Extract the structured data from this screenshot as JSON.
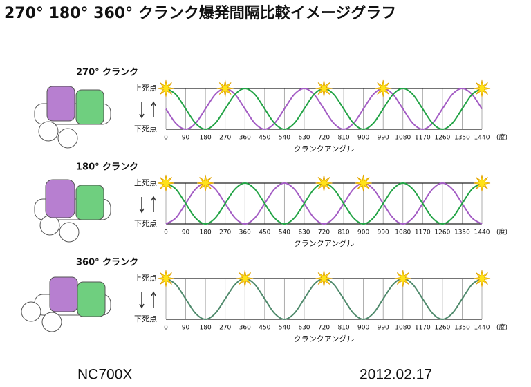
{
  "title": "270° 180° 360° クランク爆発間隔比較イメージグラフ",
  "footer_left": "NC700X",
  "footer_right": "2012.02.17",
  "chart_data": [
    {
      "type": "line",
      "title": "270° クランク",
      "x_label": "クランクアングル",
      "x_unit": "(度)",
      "xlim": [
        0,
        1440
      ],
      "xticks": [
        0,
        90,
        180,
        270,
        360,
        450,
        540,
        630,
        720,
        810,
        900,
        990,
        1080,
        1170,
        1260,
        1350,
        1440
      ],
      "ylim": [
        -1,
        1
      ],
      "yticks": [
        {
          "value": 1,
          "label": "上死点"
        },
        {
          "value": -1,
          "label": "下死点"
        }
      ],
      "grid": true,
      "x": [
        0,
        45,
        90,
        135,
        180,
        225,
        270,
        315,
        360,
        405,
        450,
        495,
        540,
        585,
        630,
        675,
        720,
        765,
        810,
        855,
        900,
        945,
        990,
        1035,
        1080,
        1125,
        1170,
        1215,
        1260,
        1305,
        1350,
        1395,
        1440
      ],
      "series": [
        {
          "color": "#a35cc4",
          "values": [
            0,
            -0.71,
            -1,
            -0.71,
            0,
            0.71,
            1,
            0.71,
            0,
            -0.71,
            -1,
            -0.71,
            0,
            0.71,
            1,
            0.71,
            0,
            -0.71,
            -1,
            -0.71,
            0,
            0.71,
            1,
            0.71,
            0,
            -0.71,
            -1,
            -0.71,
            0,
            0.71,
            1,
            0.71,
            0
          ]
        },
        {
          "color": "#22a345",
          "values": [
            1,
            0.71,
            0,
            -0.71,
            -1,
            -0.71,
            0,
            0.71,
            1,
            0.71,
            0,
            -0.71,
            -1,
            -0.71,
            0,
            0.71,
            1,
            0.71,
            0,
            -0.71,
            -1,
            -0.71,
            0,
            0.71,
            1,
            0.71,
            0,
            -0.71,
            -1,
            -0.71,
            0,
            0.71,
            1
          ]
        }
      ],
      "markers": [
        {
          "x": 0,
          "y": 1
        },
        {
          "x": 270,
          "y": 1
        },
        {
          "x": 720,
          "y": 1
        },
        {
          "x": 990,
          "y": 1
        },
        {
          "x": 1440,
          "y": 1
        }
      ]
    },
    {
      "type": "line",
      "title": "180° クランク",
      "x_label": "クランクアングル",
      "x_unit": "(度)",
      "xlim": [
        0,
        1440
      ],
      "xticks": [
        0,
        90,
        180,
        270,
        360,
        450,
        540,
        630,
        720,
        810,
        900,
        990,
        1080,
        1170,
        1260,
        1350,
        1440
      ],
      "ylim": [
        -1,
        1
      ],
      "yticks": [
        {
          "value": 1,
          "label": "上死点"
        },
        {
          "value": -1,
          "label": "下死点"
        }
      ],
      "grid": true,
      "x": [
        0,
        45,
        90,
        135,
        180,
        225,
        270,
        315,
        360,
        405,
        450,
        495,
        540,
        585,
        630,
        675,
        720,
        765,
        810,
        855,
        900,
        945,
        990,
        1035,
        1080,
        1125,
        1170,
        1215,
        1260,
        1305,
        1350,
        1395,
        1440
      ],
      "series": [
        {
          "color": "#a35cc4",
          "values": [
            -1,
            -0.71,
            0,
            0.71,
            1,
            0.71,
            0,
            -0.71,
            -1,
            -0.71,
            0,
            0.71,
            1,
            0.71,
            0,
            -0.71,
            -1,
            -0.71,
            0,
            0.71,
            1,
            0.71,
            0,
            -0.71,
            -1,
            -0.71,
            0,
            0.71,
            1,
            0.71,
            0,
            -0.71,
            -1
          ]
        },
        {
          "color": "#22a345",
          "values": [
            1,
            0.71,
            0,
            -0.71,
            -1,
            -0.71,
            0,
            0.71,
            1,
            0.71,
            0,
            -0.71,
            -1,
            -0.71,
            0,
            0.71,
            1,
            0.71,
            0,
            -0.71,
            -1,
            -0.71,
            0,
            0.71,
            1,
            0.71,
            0,
            -0.71,
            -1,
            -0.71,
            0,
            0.71,
            1
          ]
        }
      ],
      "markers": [
        {
          "x": 0,
          "y": 1
        },
        {
          "x": 180,
          "y": 1
        },
        {
          "x": 720,
          "y": 1
        },
        {
          "x": 900,
          "y": 1
        },
        {
          "x": 1440,
          "y": 1
        }
      ]
    },
    {
      "type": "line",
      "title": "360° クランク",
      "x_label": "クランクアングル",
      "x_unit": "(度)",
      "xlim": [
        0,
        1440
      ],
      "xticks": [
        0,
        90,
        180,
        270,
        360,
        450,
        540,
        630,
        720,
        810,
        900,
        990,
        1080,
        1170,
        1260,
        1350,
        1440
      ],
      "ylim": [
        -1,
        1
      ],
      "yticks": [
        {
          "value": 1,
          "label": "上死点"
        },
        {
          "value": -1,
          "label": "下死点"
        }
      ],
      "grid": true,
      "x": [
        0,
        45,
        90,
        135,
        180,
        225,
        270,
        315,
        360,
        405,
        450,
        495,
        540,
        585,
        630,
        675,
        720,
        765,
        810,
        855,
        900,
        945,
        990,
        1035,
        1080,
        1125,
        1170,
        1215,
        1260,
        1305,
        1350,
        1395,
        1440
      ],
      "series": [
        {
          "color": "#4f8a6c",
          "values": [
            1,
            0.71,
            0,
            -0.71,
            -1,
            -0.71,
            0,
            0.71,
            1,
            0.71,
            0,
            -0.71,
            -1,
            -0.71,
            0,
            0.71,
            1,
            0.71,
            0,
            -0.71,
            -1,
            -0.71,
            0,
            0.71,
            1,
            0.71,
            0,
            -0.71,
            -1,
            -0.71,
            0,
            0.71,
            1
          ]
        }
      ],
      "markers": [
        {
          "x": 0,
          "y": 1
        },
        {
          "x": 360,
          "y": 1
        },
        {
          "x": 720,
          "y": 1
        },
        {
          "x": 1080,
          "y": 1
        },
        {
          "x": 1440,
          "y": 1
        }
      ]
    }
  ]
}
